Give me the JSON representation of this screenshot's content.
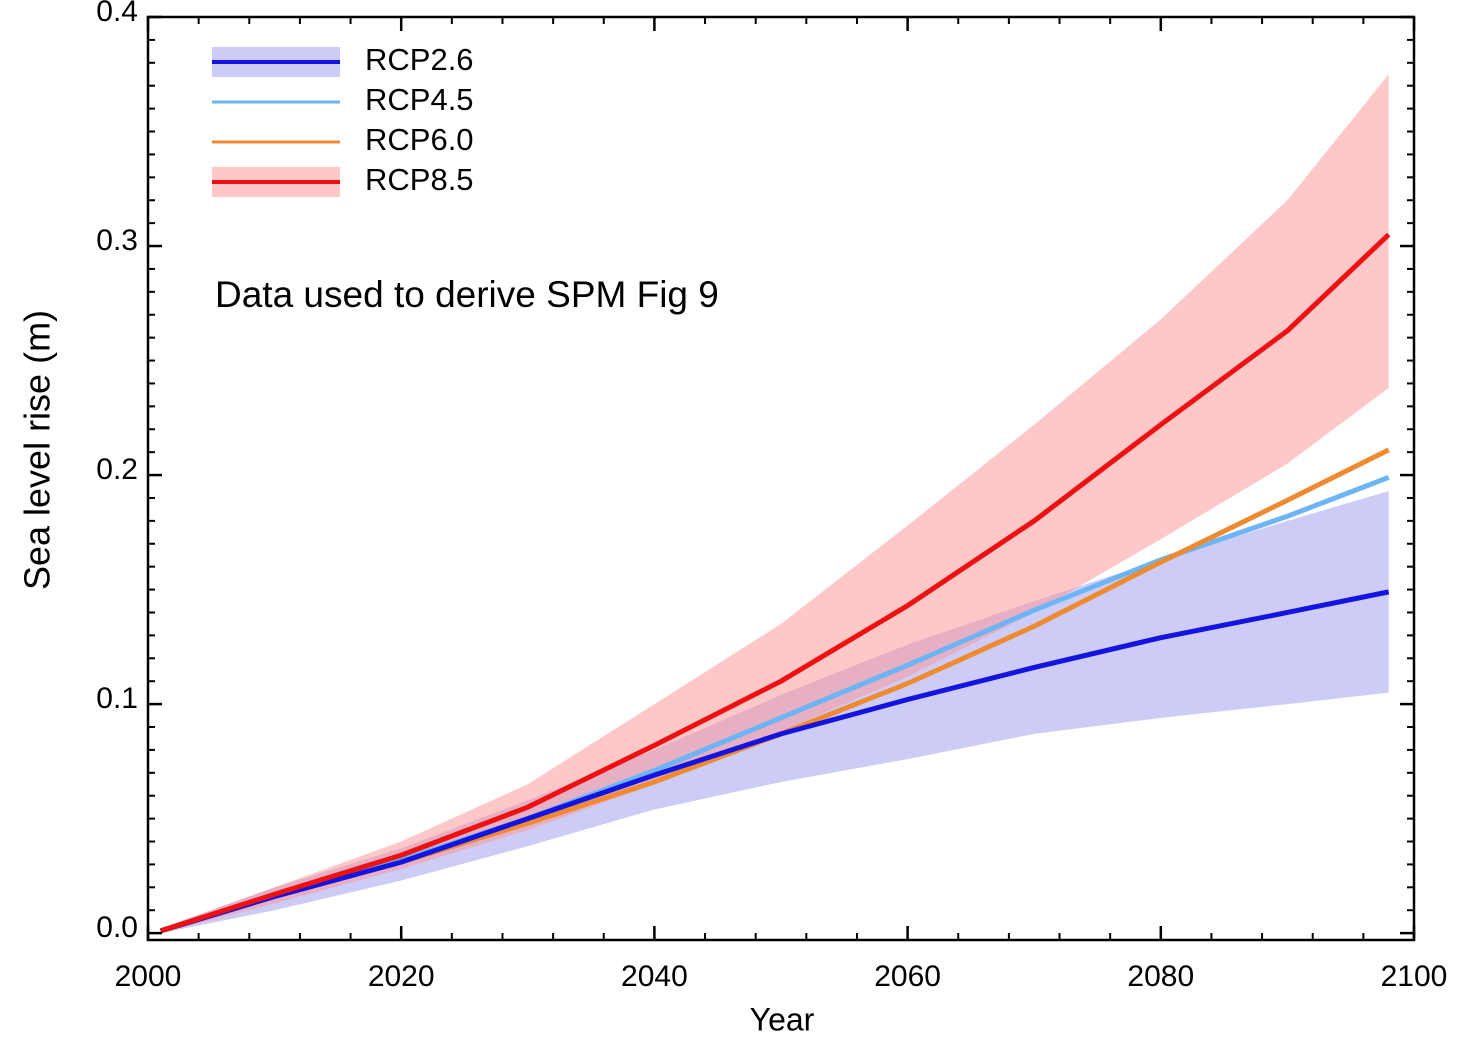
{
  "chart_data": {
    "type": "line",
    "annotation": "Data used to derive SPM Fig 9",
    "x_label": "Year",
    "y_label": "Sea level rise (m)",
    "x": [
      2001,
      2010,
      2020,
      2030,
      2040,
      2050,
      2060,
      2070,
      2080,
      2090,
      2098
    ],
    "xlim": [
      2000,
      2100
    ],
    "xticks": [
      2000,
      2020,
      2040,
      2060,
      2080,
      2100
    ],
    "ylim": [
      -0.003,
      0.4
    ],
    "yticks": [
      {
        "value": 0,
        "label": "0.0"
      },
      0.1,
      0.2,
      0.3,
      0.4
    ],
    "series": [
      {
        "name": "RCP2.6",
        "color": "#1414e0",
        "band_color": "#9999f0",
        "values": [
          0.001,
          0.016,
          0.031,
          0.05,
          0.069,
          0.087,
          0.102,
          0.116,
          0.129,
          0.14,
          0.149
        ],
        "lower": [
          0.0,
          0.01,
          0.023,
          0.038,
          0.054,
          0.066,
          0.076,
          0.087,
          0.094,
          0.1,
          0.105
        ],
        "upper": [
          0.002,
          0.02,
          0.037,
          0.058,
          0.08,
          0.104,
          0.126,
          0.145,
          0.163,
          0.18,
          0.193
        ]
      },
      {
        "name": "RCP4.5",
        "color": "#6cb4f4",
        "values": [
          0.001,
          0.016,
          0.032,
          0.05,
          0.071,
          0.094,
          0.117,
          0.141,
          0.163,
          0.182,
          0.199
        ]
      },
      {
        "name": "RCP6.0",
        "color": "#f08a30",
        "values": [
          0.001,
          0.016,
          0.031,
          0.048,
          0.066,
          0.087,
          0.109,
          0.134,
          0.162,
          0.189,
          0.211
        ]
      },
      {
        "name": "RCP8.5",
        "color": "#ee1111",
        "band_color": "#ff9191",
        "values": [
          0.001,
          0.017,
          0.034,
          0.055,
          0.082,
          0.11,
          0.143,
          0.18,
          0.222,
          0.263,
          0.305
        ],
        "lower": [
          0.0,
          0.013,
          0.028,
          0.045,
          0.065,
          0.088,
          0.112,
          0.14,
          0.172,
          0.205,
          0.238
        ],
        "upper": [
          0.002,
          0.02,
          0.04,
          0.065,
          0.1,
          0.135,
          0.178,
          0.222,
          0.268,
          0.32,
          0.375
        ]
      }
    ]
  }
}
